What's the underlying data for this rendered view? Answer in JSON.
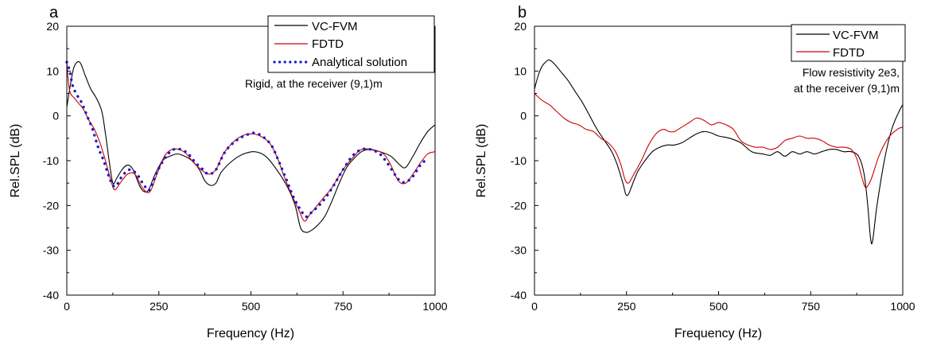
{
  "chart_data": [
    {
      "type": "line",
      "panel_label": "a",
      "xlabel": "Frequency (Hz)",
      "ylabel": "Rel.SPL (dB)",
      "xlim": [
        0,
        1000
      ],
      "ylim": [
        -40,
        20
      ],
      "xticks": [
        0,
        250,
        500,
        750,
        1000
      ],
      "yticks": [
        20,
        10,
        0,
        -10,
        -20,
        -30,
        -40
      ],
      "grid": false,
      "legend": "top-right",
      "annotation": [
        "Rigid, at the receiver (9,1)m"
      ],
      "series": [
        {
          "name": "VC-FVM",
          "color": "#000000",
          "style": "solid",
          "x": [
            0,
            10,
            20,
            35,
            50,
            65,
            80,
            95,
            105,
            115,
            125,
            135,
            150,
            165,
            180,
            200,
            215,
            225,
            240,
            260,
            280,
            300,
            320,
            340,
            360,
            375,
            390,
            405,
            420,
            450,
            480,
            510,
            540,
            570,
            600,
            620,
            635,
            650,
            665,
            680,
            700,
            720,
            740,
            760,
            780,
            800,
            820,
            850,
            880,
            905,
            920,
            940,
            960,
            980,
            1000
          ],
          "y": [
            2,
            7,
            11,
            12,
            9,
            6,
            4,
            1,
            -4,
            -10,
            -15,
            -14,
            -12,
            -11,
            -12,
            -16,
            -17,
            -16,
            -13,
            -10,
            -9,
            -8.5,
            -9,
            -10,
            -12,
            -14.5,
            -15.5,
            -15,
            -12.5,
            -10,
            -8.5,
            -8,
            -9,
            -12,
            -16,
            -20,
            -25,
            -26,
            -25.5,
            -24.5,
            -22.5,
            -19,
            -15,
            -11.5,
            -9.5,
            -8,
            -7.5,
            -8,
            -9,
            -11,
            -11.5,
            -9,
            -6,
            -3.5,
            -2
          ]
        },
        {
          "name": "FDTD",
          "color": "#cc0000",
          "style": "solid",
          "x": [
            0,
            5,
            10,
            20,
            30,
            45,
            60,
            75,
            90,
            105,
            120,
            130,
            145,
            165,
            185,
            205,
            225,
            245,
            265,
            285,
            305,
            325,
            345,
            365,
            385,
            405,
            425,
            450,
            475,
            500,
            525,
            550,
            570,
            590,
            610,
            630,
            645,
            660,
            680,
            700,
            720,
            750,
            780,
            800,
            830,
            860,
            880,
            900,
            920,
            940,
            960,
            980,
            1000
          ],
          "y": [
            12,
            7,
            5,
            4,
            3,
            1.5,
            -1,
            -3,
            -6,
            -10,
            -14.5,
            -16.5,
            -15,
            -13,
            -13,
            -16,
            -17,
            -13,
            -9,
            -7.5,
            -7.5,
            -8.5,
            -10.5,
            -12,
            -13,
            -12,
            -8.5,
            -6,
            -4.5,
            -4,
            -4.5,
            -6,
            -9,
            -13.5,
            -17.5,
            -21,
            -23.5,
            -22,
            -20,
            -18,
            -16,
            -12,
            -9,
            -7.5,
            -7.5,
            -8.5,
            -11,
            -14.5,
            -15,
            -13,
            -10.5,
            -8.5,
            -8
          ]
        },
        {
          "name": "Analytical solution",
          "color": "#1a1acc",
          "style": "dotted",
          "x": [
            0,
            8,
            15,
            25,
            40,
            55,
            70,
            85,
            100,
            112,
            125,
            135,
            150,
            170,
            190,
            210,
            225,
            245,
            270,
            290,
            310,
            330,
            350,
            370,
            385,
            405,
            430,
            460,
            490,
            510,
            530,
            555,
            575,
            595,
            615,
            635,
            650,
            665,
            685,
            705,
            725,
            750,
            775,
            800,
            825,
            850,
            870,
            890,
            905,
            920,
            940,
            960,
            980
          ],
          "y": [
            12,
            10,
            7,
            5,
            3,
            0,
            -3,
            -7,
            -10,
            -13,
            -15.5,
            -15.5,
            -13.5,
            -12,
            -13,
            -15.5,
            -16.5,
            -12.5,
            -9,
            -7.5,
            -7.5,
            -8.5,
            -10.5,
            -12,
            -13,
            -12,
            -8,
            -5.5,
            -4.2,
            -3.8,
            -4.5,
            -6.5,
            -10,
            -14,
            -18,
            -21,
            -22.5,
            -21.5,
            -20,
            -18,
            -15.5,
            -12,
            -9,
            -7.5,
            -7.5,
            -8.5,
            -10.5,
            -13,
            -14.5,
            -14.8,
            -13.5,
            -11,
            -9.5
          ]
        }
      ]
    },
    {
      "type": "line",
      "panel_label": "b",
      "xlabel": "Frequency (Hz)",
      "ylabel": "Rel.SPL (dB)",
      "xlim": [
        0,
        1000
      ],
      "ylim": [
        -40,
        20
      ],
      "xticks": [
        0,
        250,
        500,
        750,
        1000
      ],
      "yticks": [
        20,
        10,
        0,
        -10,
        -20,
        -30,
        -40
      ],
      "grid": false,
      "legend": "top-right",
      "annotation": [
        "Flow resistivity 2e3,",
        "at the receiver (9,1)m"
      ],
      "series": [
        {
          "name": "VC-FVM",
          "color": "#000000",
          "style": "solid",
          "x": [
            0,
            10,
            20,
            30,
            40,
            55,
            70,
            90,
            110,
            130,
            150,
            170,
            190,
            210,
            225,
            240,
            248,
            255,
            265,
            280,
            300,
            320,
            340,
            360,
            380,
            400,
            420,
            440,
            460,
            480,
            500,
            530,
            560,
            590,
            620,
            640,
            660,
            680,
            700,
            720,
            740,
            760,
            780,
            800,
            820,
            840,
            860,
            880,
            895,
            905,
            912,
            918,
            930,
            950,
            970,
            990,
            1000
          ],
          "y": [
            6,
            9,
            11,
            12,
            12.5,
            11.5,
            10,
            8,
            5.5,
            3,
            0,
            -3,
            -5.5,
            -8,
            -11,
            -15,
            -17.5,
            -17.5,
            -15.5,
            -12.5,
            -10,
            -8,
            -7,
            -6.5,
            -6.5,
            -6,
            -5,
            -4,
            -3.5,
            -3.8,
            -4.5,
            -5,
            -6,
            -8,
            -8.5,
            -8.8,
            -8,
            -9,
            -8,
            -8.5,
            -8,
            -8.5,
            -8,
            -7.5,
            -7.5,
            -8,
            -8,
            -9,
            -13,
            -20,
            -27,
            -28,
            -20,
            -10,
            -3,
            1,
            2.5
          ]
        },
        {
          "name": "FDTD",
          "color": "#cc0000",
          "style": "solid",
          "x": [
            0,
            20,
            40,
            60,
            80,
            100,
            120,
            140,
            160,
            180,
            200,
            220,
            235,
            245,
            255,
            270,
            290,
            310,
            330,
            350,
            365,
            380,
            400,
            420,
            440,
            460,
            480,
            500,
            520,
            540,
            560,
            580,
            600,
            620,
            640,
            660,
            680,
            700,
            720,
            740,
            760,
            780,
            800,
            820,
            840,
            860,
            875,
            890,
            900,
            915,
            935,
            960,
            985,
            1000
          ],
          "y": [
            5,
            3.5,
            2.5,
            1,
            -0.5,
            -1.5,
            -2,
            -3,
            -3.5,
            -5,
            -6,
            -8,
            -11,
            -14,
            -15,
            -13,
            -10,
            -6.5,
            -4,
            -3,
            -3.5,
            -3.5,
            -2.5,
            -1.5,
            -0.5,
            -1,
            -2,
            -1.5,
            -2,
            -3,
            -5.5,
            -6.5,
            -7,
            -7,
            -7.5,
            -7,
            -5.5,
            -5,
            -4.5,
            -5,
            -5,
            -5.5,
            -6.5,
            -7,
            -7,
            -7.5,
            -9.5,
            -14,
            -16,
            -14,
            -9,
            -5,
            -3,
            -2.5
          ]
        }
      ]
    }
  ]
}
